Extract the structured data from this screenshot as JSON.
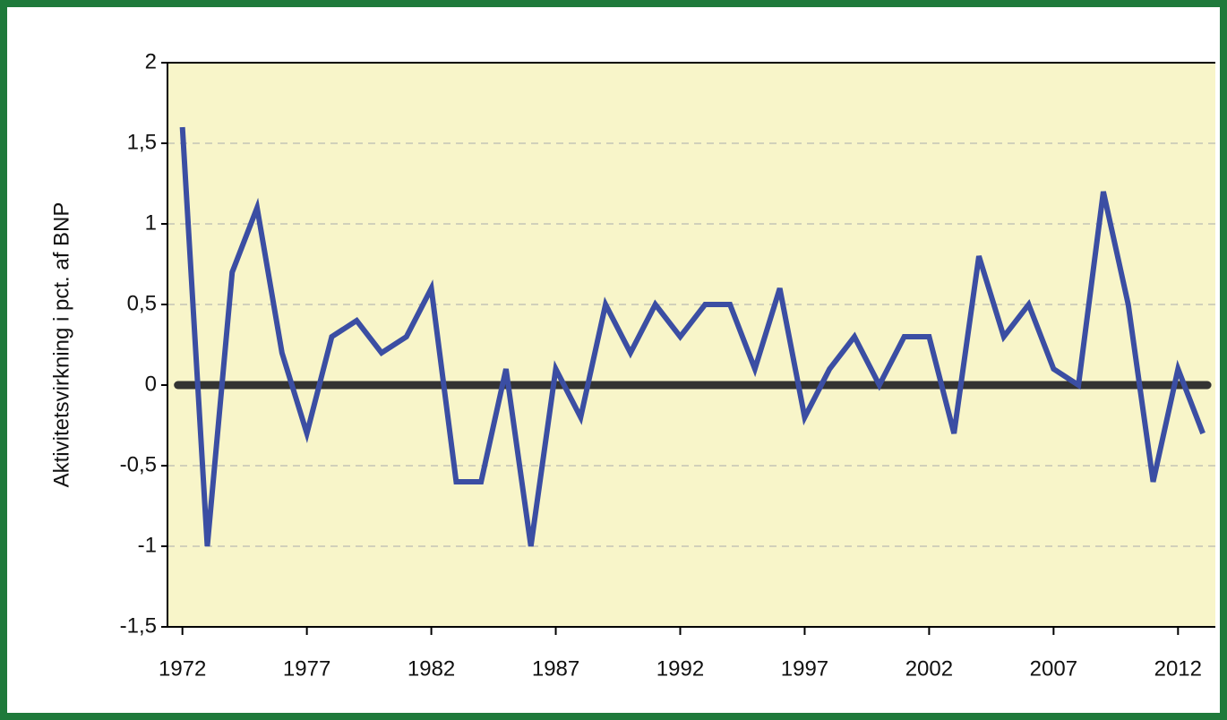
{
  "chart_data": {
    "type": "line",
    "ylabel": "Aktivitetsvirkning i pct. af BNP",
    "x": [
      1972,
      1973,
      1974,
      1975,
      1976,
      1977,
      1978,
      1979,
      1980,
      1981,
      1982,
      1983,
      1984,
      1985,
      1986,
      1987,
      1988,
      1989,
      1990,
      1991,
      1992,
      1993,
      1994,
      1995,
      1996,
      1997,
      1998,
      1999,
      2000,
      2001,
      2002,
      2003,
      2004,
      2005,
      2006,
      2007,
      2008,
      2009,
      2010,
      2011,
      2012,
      2013
    ],
    "series": [
      {
        "color": "#3b4ea3",
        "values": [
          1.6,
          -1.0,
          0.7,
          1.1,
          0.2,
          -0.3,
          0.3,
          0.4,
          0.2,
          0.3,
          0.6,
          -0.6,
          -0.6,
          0.1,
          -1.0,
          0.1,
          -0.2,
          0.5,
          0.2,
          0.5,
          0.3,
          0.5,
          0.5,
          0.1,
          0.6,
          -0.2,
          0.1,
          0.3,
          0.0,
          0.3,
          0.3,
          -0.3,
          0.8,
          0.3,
          0.5,
          0.1,
          0.0,
          1.2,
          0.5,
          -0.6,
          0.1,
          -0.3
        ]
      }
    ],
    "xlim": [
      1971.4,
      2013.5
    ],
    "xticks": [
      1972,
      1977,
      1982,
      1987,
      1992,
      1997,
      2002,
      2007,
      2012
    ],
    "ylim": [
      -1.5,
      2
    ],
    "yticks": [
      {
        "value": -1.5,
        "label": "-1,5"
      },
      -1,
      {
        "value": -0.5,
        "label": "-0,5"
      },
      0,
      {
        "value": 0.5,
        "label": "0,5"
      },
      1,
      {
        "value": 1.5,
        "label": "1,5"
      },
      2
    ],
    "grid": true
  }
}
